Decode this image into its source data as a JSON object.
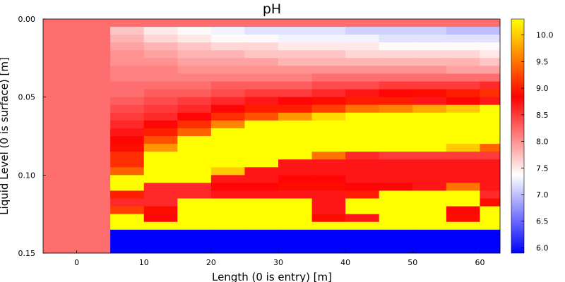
{
  "chart_data": {
    "type": "heatmap",
    "title": "pH",
    "xlabel": "Length (0 is entry) [m]",
    "ylabel": "Liquid Level (0 is surface) [m]",
    "x_ticks": [
      0,
      10,
      20,
      30,
      40,
      50,
      60
    ],
    "y_ticks": [
      "0.00",
      "0.05",
      "0.10",
      "0.15"
    ],
    "xlim": [
      -5,
      63
    ],
    "ylim": [
      0,
      0.15
    ],
    "y_inverted": true,
    "grid": false,
    "colorbar": {
      "range": [
        5.9,
        10.3
      ],
      "ticks": [
        "6.0",
        "6.5",
        "7.0",
        "7.5",
        "8.0",
        "8.5",
        "9.0",
        "9.5",
        "10.0"
      ],
      "colors": [
        "#0000ff",
        "#ffffff",
        "#ff0000",
        "#ffff00"
      ]
    },
    "x_centers": [
      0,
      5,
      10,
      15,
      20,
      25,
      30,
      35,
      40,
      45,
      50,
      55,
      60
    ],
    "x_edges": [
      -5,
      5,
      10,
      15,
      20,
      25,
      30,
      35,
      40,
      45,
      50,
      55,
      60,
      65
    ],
    "y_edges": [
      0,
      0.005,
      0.01,
      0.015,
      0.02,
      0.025,
      0.03,
      0.035,
      0.04,
      0.045,
      0.05,
      0.055,
      0.06,
      0.065,
      0.07,
      0.075,
      0.08,
      0.085,
      0.09,
      0.095,
      0.1,
      0.105,
      0.11,
      0.115,
      0.12,
      0.125,
      0.13,
      0.135,
      0.14,
      0.145,
      0.15
    ],
    "values": [
      [
        8.2,
        8.2,
        8.2,
        8.2,
        8.2,
        8.2,
        8.2,
        8.2,
        8.2,
        8.2,
        8.2,
        8.2,
        8.2
      ],
      [
        8.2,
        7.7,
        7.5,
        7.4,
        7.3,
        7.2,
        7.2,
        7.2,
        7.1,
        7.1,
        7.1,
        7.0,
        7.0
      ],
      [
        8.2,
        7.8,
        7.6,
        7.5,
        7.4,
        7.4,
        7.3,
        7.3,
        7.3,
        7.2,
        7.2,
        7.2,
        7.2
      ],
      [
        8.2,
        7.9,
        7.8,
        7.7,
        7.6,
        7.6,
        7.5,
        7.5,
        7.5,
        7.4,
        7.4,
        7.4,
        7.4
      ],
      [
        8.2,
        8.0,
        7.9,
        7.8,
        7.8,
        7.7,
        7.7,
        7.7,
        7.6,
        7.6,
        7.6,
        7.6,
        7.5
      ],
      [
        8.2,
        8.0,
        8.0,
        7.9,
        7.9,
        7.9,
        7.8,
        7.8,
        7.8,
        7.8,
        7.8,
        7.8,
        7.7
      ],
      [
        8.2,
        8.1,
        8.1,
        8.0,
        8.0,
        8.0,
        8.0,
        8.0,
        8.0,
        8.0,
        8.0,
        7.9,
        7.9
      ],
      [
        8.2,
        8.1,
        8.1,
        8.1,
        8.1,
        8.1,
        8.1,
        8.2,
        8.2,
        8.2,
        8.2,
        8.2,
        8.2
      ],
      [
        8.2,
        8.2,
        8.2,
        8.2,
        8.3,
        8.3,
        8.3,
        8.4,
        8.4,
        8.5,
        8.5,
        8.5,
        8.6
      ],
      [
        8.2,
        8.2,
        8.3,
        8.3,
        8.4,
        8.5,
        8.5,
        8.6,
        8.7,
        8.8,
        8.9,
        9.0,
        9.1
      ],
      [
        8.2,
        8.3,
        8.4,
        8.5,
        8.6,
        8.7,
        8.8,
        8.9,
        9.0,
        9.0,
        8.7,
        8.8,
        8.7
      ],
      [
        8.2,
        8.4,
        8.5,
        8.6,
        8.8,
        9.0,
        9.0,
        9.2,
        9.5,
        9.6,
        9.8,
        10.0,
        10.3
      ],
      [
        8.2,
        8.5,
        8.6,
        8.8,
        9.1,
        9.3,
        9.7,
        10.1,
        10.3,
        10.3,
        10.3,
        10.3,
        10.3
      ],
      [
        8.2,
        8.6,
        8.8,
        9.1,
        9.6,
        10.3,
        10.3,
        10.3,
        10.3,
        10.3,
        10.3,
        10.3,
        10.3
      ],
      [
        8.2,
        8.7,
        9.0,
        9.4,
        10.3,
        10.3,
        10.3,
        10.3,
        10.3,
        10.3,
        10.3,
        10.3,
        10.3
      ],
      [
        8.2,
        8.8,
        9.3,
        10.3,
        10.3,
        10.3,
        10.3,
        10.3,
        10.3,
        10.3,
        10.3,
        10.3,
        10.3
      ],
      [
        8.2,
        8.9,
        9.7,
        10.3,
        10.3,
        10.3,
        10.3,
        10.3,
        10.3,
        10.3,
        10.3,
        10.0,
        9.4
      ],
      [
        8.2,
        9.1,
        10.3,
        10.3,
        10.3,
        10.3,
        10.3,
        9.5,
        8.6,
        8.5,
        8.5,
        8.5,
        8.5
      ],
      [
        8.2,
        9.1,
        10.3,
        10.3,
        10.3,
        10.3,
        8.7,
        8.7,
        8.7,
        8.7,
        8.7,
        8.7,
        8.7
      ],
      [
        8.2,
        9.4,
        10.3,
        10.3,
        10.0,
        8.7,
        8.7,
        8.7,
        8.7,
        8.7,
        8.7,
        8.7,
        8.7
      ],
      [
        8.2,
        10.3,
        10.3,
        10.3,
        8.7,
        8.7,
        8.8,
        8.8,
        8.7,
        8.7,
        8.7,
        8.7,
        8.7
      ],
      [
        8.2,
        10.3,
        8.6,
        8.6,
        8.8,
        8.8,
        8.9,
        8.9,
        8.8,
        8.8,
        8.7,
        9.5,
        8.7
      ],
      [
        8.2,
        9.0,
        8.6,
        8.6,
        8.7,
        8.7,
        8.7,
        8.7,
        9.0,
        10.3,
        10.3,
        10.3,
        8.6
      ],
      [
        8.2,
        8.6,
        8.6,
        10.3,
        10.3,
        10.3,
        10.3,
        8.7,
        10.3,
        10.3,
        10.3,
        10.3,
        8.9
      ],
      [
        8.2,
        9.2,
        8.9,
        10.3,
        10.3,
        10.3,
        10.3,
        8.7,
        10.3,
        10.3,
        10.3,
        8.8,
        10.3
      ],
      [
        8.2,
        10.3,
        8.8,
        10.3,
        10.3,
        10.3,
        10.3,
        8.9,
        8.7,
        10.3,
        10.3,
        8.9,
        10.3
      ],
      [
        8.2,
        10.3,
        10.3,
        10.3,
        10.3,
        10.3,
        10.3,
        10.3,
        10.3,
        10.3,
        10.3,
        10.3,
        10.3
      ],
      [
        8.2,
        5.9,
        5.9,
        5.9,
        5.9,
        5.9,
        5.9,
        5.9,
        5.9,
        5.9,
        5.9,
        5.9,
        5.9
      ],
      [
        8.2,
        5.9,
        5.9,
        5.9,
        5.9,
        5.9,
        5.9,
        5.9,
        5.9,
        5.9,
        5.9,
        5.9,
        5.9
      ],
      [
        8.2,
        5.9,
        5.9,
        5.9,
        5.9,
        5.9,
        5.9,
        5.9,
        5.9,
        5.9,
        5.9,
        5.9,
        5.9
      ]
    ]
  }
}
